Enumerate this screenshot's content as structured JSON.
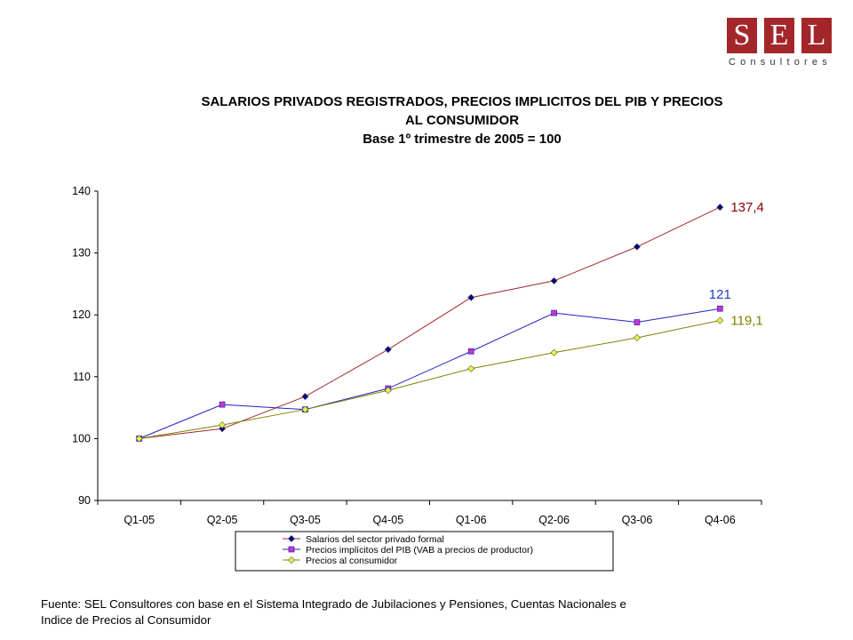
{
  "logo": {
    "letters": [
      "S",
      "E",
      "L"
    ],
    "subtitle": "Consultores"
  },
  "title_lines": [
    "SALARIOS PRIVADOS REGISTRADOS, PRECIOS IMPLICITOS DEL PIB Y PRECIOS",
    "AL CONSUMIDOR",
    "Base 1º trimestre de 2005 = 100"
  ],
  "source_lines": [
    "Fuente: SEL Consultores con base en el Sistema Integrado de Jubilaciones y Pensiones, Cuentas Nacionales e",
    "Indice de Precios al Consumidor"
  ],
  "chart_data": {
    "type": "line",
    "title": "SALARIOS PRIVADOS REGISTRADOS, PRECIOS IMPLICITOS DEL PIB Y PRECIOS AL CONSUMIDOR",
    "subtitle": "Base 1º trimestre de 2005 = 100",
    "categories": [
      "Q1-05",
      "Q2-05",
      "Q3-05",
      "Q4-05",
      "Q1-06",
      "Q2-06",
      "Q3-06",
      "Q4-06"
    ],
    "ylim": [
      90,
      140
    ],
    "yticks": [
      "90",
      "100",
      "110",
      "120",
      "130",
      "140"
    ],
    "grid": false,
    "legend": "bottom",
    "series": [
      {
        "name": "Salarios del sector privado formal",
        "color": "#a52a2a",
        "marker": "diamond",
        "marker_color": "#00008b",
        "values": [
          100,
          101.6,
          106.8,
          114.4,
          122.8,
          125.5,
          131.0,
          137.4
        ],
        "end_label": "137,4",
        "label_color": "#8b0000"
      },
      {
        "name": "Precios implícitos del PIB (VAB a precios de productor)",
        "color": "#2020c0",
        "marker": "square",
        "marker_color": "#cc33cc",
        "values": [
          100,
          105.5,
          104.7,
          108.1,
          114.1,
          120.3,
          118.8,
          121.0
        ],
        "end_label": "121",
        "label_color": "#1f3fbf"
      },
      {
        "name": "Precios al consumidor",
        "color": "#808000",
        "marker": "diamond",
        "marker_color": "#e5ff33",
        "values": [
          100,
          102.2,
          104.7,
          107.8,
          111.3,
          113.9,
          116.3,
          119.1
        ],
        "end_label": "119,1",
        "label_color": "#7f7f00"
      }
    ]
  }
}
